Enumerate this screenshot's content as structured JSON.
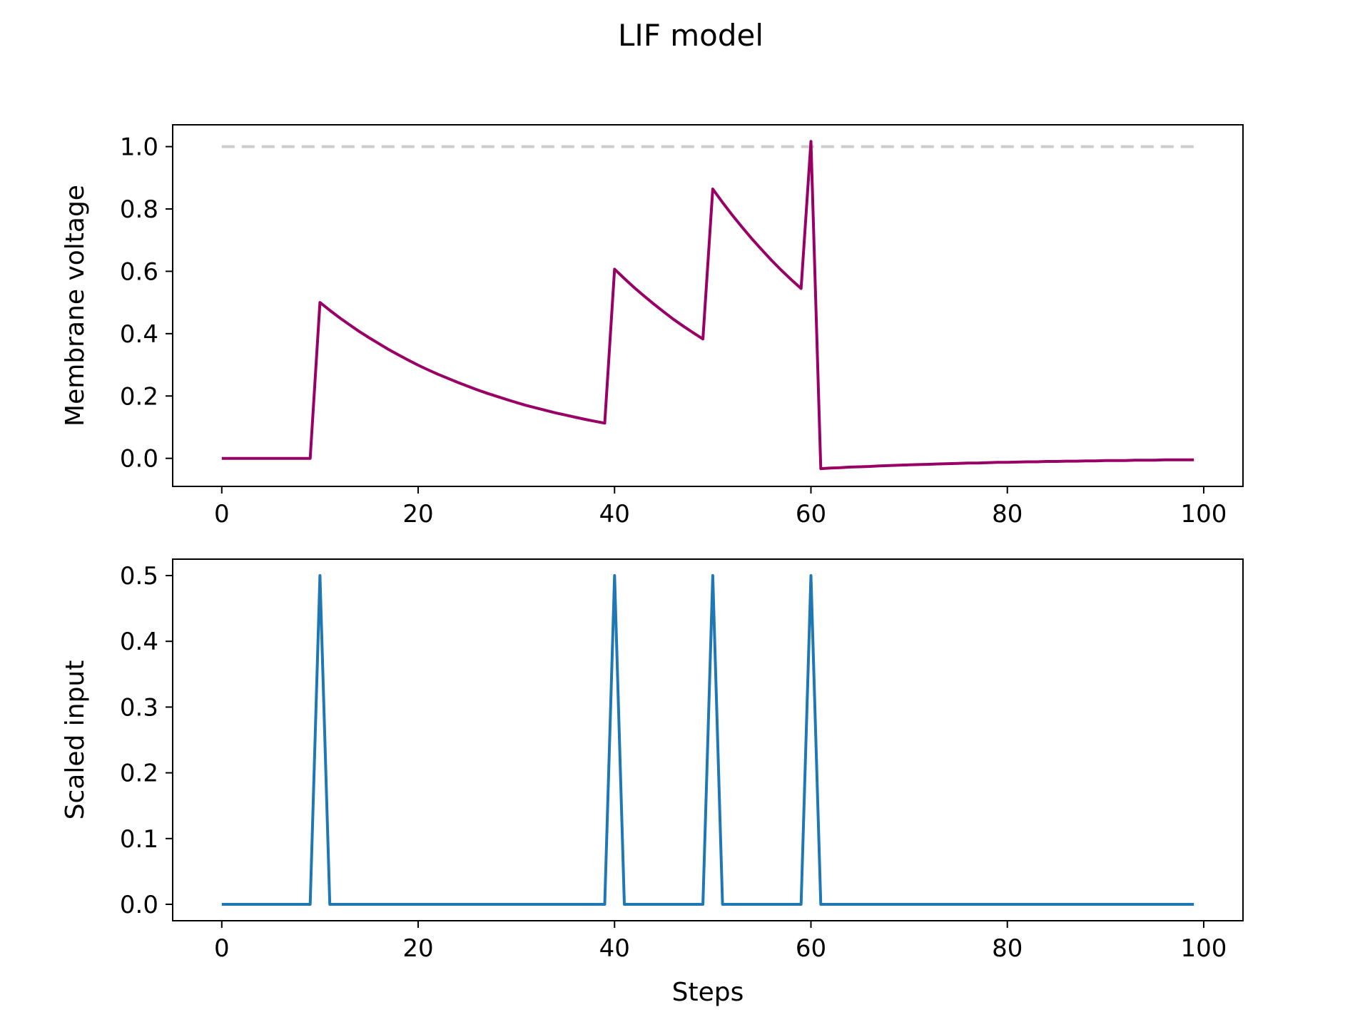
{
  "title": "LIF model",
  "chart_data": [
    {
      "type": "line",
      "ylabel": "Membrane voltage",
      "xlabel": "",
      "xlim": [
        -5,
        104
      ],
      "ylim": [
        -0.09,
        1.07
      ],
      "xticks": [
        0,
        20,
        40,
        60,
        80,
        100
      ],
      "yticks": [
        0.0,
        0.2,
        0.4,
        0.6,
        0.8,
        1.0
      ],
      "ytick_labels": [
        "0.0",
        "0.2",
        "0.4",
        "0.6",
        "0.8",
        "1.0"
      ],
      "threshold": {
        "y": 1.0,
        "x": [
          0,
          99
        ],
        "color": "#cccccc",
        "style": "dashed"
      },
      "series": [
        {
          "color": "#990066",
          "x": [
            0,
            1,
            2,
            3,
            4,
            5,
            6,
            7,
            8,
            9,
            10,
            11,
            12,
            13,
            14,
            15,
            16,
            17,
            18,
            19,
            20,
            21,
            22,
            23,
            24,
            25,
            26,
            27,
            28,
            29,
            30,
            31,
            32,
            33,
            34,
            35,
            36,
            37,
            38,
            39,
            40,
            41,
            42,
            43,
            44,
            45,
            46,
            47,
            48,
            49,
            50,
            51,
            52,
            53,
            54,
            55,
            56,
            57,
            58,
            59,
            60,
            61,
            62,
            63,
            64,
            65,
            66,
            67,
            68,
            69,
            70,
            71,
            72,
            73,
            74,
            75,
            76,
            77,
            78,
            79,
            80,
            81,
            82,
            83,
            84,
            85,
            86,
            87,
            88,
            89,
            90,
            91,
            92,
            93,
            94,
            95,
            96,
            97,
            98,
            99
          ],
          "values": [
            0,
            0,
            0,
            0,
            0,
            0,
            0,
            0,
            0,
            0,
            0.5,
            0.475,
            0.451,
            0.429,
            0.407,
            0.387,
            0.368,
            0.349,
            0.332,
            0.315,
            0.299,
            0.284,
            0.27,
            0.257,
            0.244,
            0.232,
            0.22,
            0.209,
            0.199,
            0.189,
            0.179,
            0.17,
            0.162,
            0.154,
            0.146,
            0.139,
            0.132,
            0.125,
            0.119,
            0.113,
            0.607,
            0.577,
            0.548,
            0.521,
            0.495,
            0.47,
            0.446,
            0.424,
            0.403,
            0.383,
            0.864,
            0.821,
            0.78,
            0.741,
            0.704,
            0.669,
            0.635,
            0.603,
            0.573,
            0.545,
            1.017,
            -0.033,
            -0.031,
            -0.03,
            -0.028,
            -0.027,
            -0.026,
            -0.024,
            -0.023,
            -0.022,
            -0.021,
            -0.02,
            -0.019,
            -0.018,
            -0.017,
            -0.016,
            -0.015,
            -0.015,
            -0.014,
            -0.013,
            -0.013,
            -0.012,
            -0.011,
            -0.011,
            -0.01,
            -0.01,
            -0.009,
            -0.009,
            -0.008,
            -0.008,
            -0.007,
            -0.007,
            -0.007,
            -0.006,
            -0.006,
            -0.006,
            -0.005,
            -0.005,
            -0.005,
            -0.005
          ]
        }
      ]
    },
    {
      "type": "line",
      "ylabel": "Scaled input",
      "xlabel": "Steps",
      "xlim": [
        -5,
        104
      ],
      "ylim": [
        -0.025,
        0.525
      ],
      "xticks": [
        0,
        20,
        40,
        60,
        80,
        100
      ],
      "yticks": [
        0.0,
        0.1,
        0.2,
        0.3,
        0.4,
        0.5
      ],
      "ytick_labels": [
        "0.0",
        "0.1",
        "0.2",
        "0.3",
        "0.4",
        "0.5"
      ],
      "series": [
        {
          "color": "#1f77b4",
          "x": [
            0,
            9,
            10,
            11,
            39,
            40,
            41,
            49,
            50,
            51,
            59,
            60,
            61,
            99
          ],
          "values": [
            0,
            0,
            0.5,
            0,
            0,
            0.5,
            0,
            0,
            0.5,
            0,
            0,
            0.5,
            0,
            0
          ]
        }
      ]
    }
  ]
}
